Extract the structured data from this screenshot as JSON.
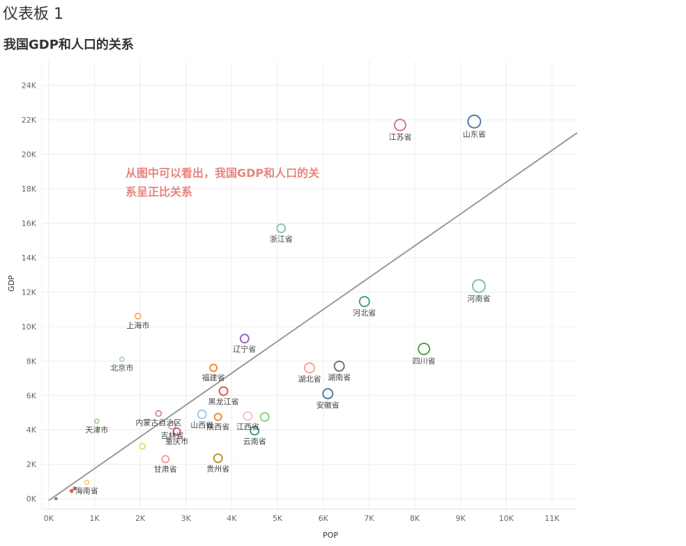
{
  "dashboard_title": "仪表板 1",
  "chart_data": {
    "type": "scatter",
    "title": "我国GDP和人口的关系",
    "xlabel": "POP",
    "ylabel": "GDP",
    "xlim": [
      -150,
      11550
    ],
    "ylim": [
      -600,
      25400
    ],
    "x_ticks": [
      0,
      1000,
      2000,
      3000,
      4000,
      5000,
      6000,
      7000,
      8000,
      9000,
      10000,
      11000
    ],
    "x_tick_labels": [
      "0K",
      "1K",
      "2K",
      "3K",
      "4K",
      "5K",
      "6K",
      "7K",
      "8K",
      "9K",
      "10K",
      "11K"
    ],
    "y_ticks": [
      0,
      2000,
      4000,
      6000,
      8000,
      10000,
      12000,
      14000,
      16000,
      18000,
      20000,
      22000,
      24000
    ],
    "y_tick_labels": [
      "0K",
      "2K",
      "4K",
      "6K",
      "8K",
      "10K",
      "12K",
      "14K",
      "16K",
      "18K",
      "20K",
      "22K",
      "24K"
    ],
    "grid": true,
    "annotation": [
      "从图中可以看出，我国GDP和人口的关",
      "系呈正比关系"
    ],
    "annotation_color": "#e8847e",
    "trend_line": {
      "x": [
        0,
        11550
      ],
      "y": [
        -100,
        21250
      ],
      "color": "#999999"
    },
    "points": [
      {
        "label": "山东省",
        "x": 9300,
        "y": 21900,
        "color": "#4e79a7",
        "size": 9
      },
      {
        "label": "江苏省",
        "x": 7680,
        "y": 21700,
        "color": "#d37295",
        "size": 8
      },
      {
        "label": "浙江省",
        "x": 5080,
        "y": 15700,
        "color": "#8cc2b4",
        "size": 6
      },
      {
        "label": "河南省",
        "x": 9400,
        "y": 12350,
        "color": "#86bcb6",
        "size": 9
      },
      {
        "label": "河北省",
        "x": 6900,
        "y": 11450,
        "color": "#499894",
        "size": 7
      },
      {
        "label": "上海市",
        "x": 1950,
        "y": 10600,
        "color": "#f1a340",
        "size": 4
      },
      {
        "label": "辽宁省",
        "x": 4280,
        "y": 9300,
        "color": "#9467bd",
        "size": 6
      },
      {
        "label": "四川省",
        "x": 8200,
        "y": 8700,
        "color": "#59a14f",
        "size": 8
      },
      {
        "label": "北京市",
        "x": 1600,
        "y": 8100,
        "color": "#a0cbe8",
        "size": 3
      },
      {
        "label": "湖北省",
        "x": 5700,
        "y": 7600,
        "color": "#ff9d9a",
        "size": 7
      },
      {
        "label": "湖南省",
        "x": 6350,
        "y": 7700,
        "color": "#79706e",
        "size": 7
      },
      {
        "label": "福建省",
        "x": 3600,
        "y": 7600,
        "color": "#f28e2b",
        "size": 5
      },
      {
        "label": "黑龙江省",
        "x": 3820,
        "y": 6250,
        "color": "#e15759",
        "size": 6
      },
      {
        "label": "安徽省",
        "x": 6100,
        "y": 6100,
        "color": "#4e79a7",
        "size": 7
      },
      {
        "label": "江西省",
        "x": 4350,
        "y": 4800,
        "color": "#fabfd2",
        "size": 6
      },
      {
        "label": "",
        "x": 4720,
        "y": 4750,
        "color": "#8cd17d",
        "size": 6
      },
      {
        "label": "内蒙古自治区",
        "x": 2400,
        "y": 4950,
        "color": "#d37295",
        "size": 4
      },
      {
        "label": "山西省",
        "x": 3350,
        "y": 4900,
        "color": "#a0cbe8",
        "size": 6
      },
      {
        "label": "陕西省",
        "x": 3700,
        "y": 4750,
        "color": "#f28e2b",
        "size": 5
      },
      {
        "label": "天津市",
        "x": 1050,
        "y": 4500,
        "color": "#8cd17d",
        "size": 3
      },
      {
        "label": "吉林省",
        "x": 2700,
        "y": 4250,
        "color": "#bab0ac",
        "size": 5
      },
      {
        "label": "重庆市",
        "x": 2800,
        "y": 3900,
        "color": "#e15759",
        "size": 5
      },
      {
        "label": "云南省",
        "x": 4500,
        "y": 3950,
        "color": "#499894",
        "size": 6
      },
      {
        "label": "",
        "x": 2050,
        "y": 3050,
        "color": "#f1ce63",
        "size": 4
      },
      {
        "label": "甘肃省",
        "x": 2550,
        "y": 2300,
        "color": "#ff9d9a",
        "size": 5
      },
      {
        "label": "贵州省",
        "x": 3700,
        "y": 2350,
        "color": "#b6992d",
        "size": 6
      },
      {
        "label": "海南省",
        "x": 830,
        "y": 950,
        "color": "#f1ce63",
        "size": 3
      },
      {
        "label": "",
        "x": 570,
        "y": 600,
        "color": "#9c755f",
        "size": 2
      },
      {
        "label": "",
        "x": 500,
        "y": 450,
        "color": "#e15759",
        "size": 2
      },
      {
        "label": "",
        "x": 160,
        "y": 0,
        "color": "#9c755f",
        "size": 1.5
      }
    ]
  }
}
